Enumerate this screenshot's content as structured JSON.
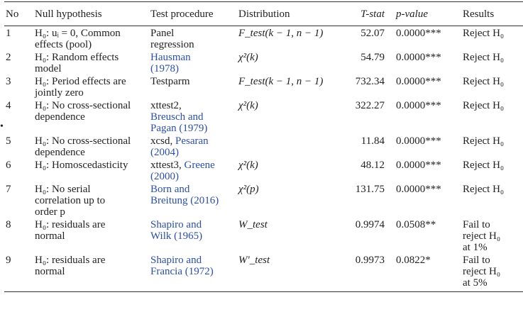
{
  "side_marker": "•",
  "headers": {
    "no": "No",
    "null_hypothesis": "Null hypothesis",
    "test_procedure": "Test procedure",
    "distribution": "Distribution",
    "t_stat": "T-stat",
    "p_value": "p-value",
    "results": "Results"
  },
  "rows": [
    {
      "no": "1",
      "null_lines": [
        "H₀: uᵢ = 0, Common",
        "effects (pool)"
      ],
      "test_plain": "Panel",
      "test_plain2": "regression",
      "test_link": "",
      "test_link2": "",
      "test_link3": "",
      "distribution": "F_test(k − 1, n − 1)",
      "t_stat": "52.07",
      "p_value": "0.0000***",
      "results_lines": [
        "Reject H₀"
      ]
    },
    {
      "no": "2",
      "null_lines": [
        "H₀: Random effects",
        "model"
      ],
      "test_plain": "",
      "test_plain2": "",
      "test_link": "Hausman",
      "test_link2": "(1978)",
      "test_link3": "",
      "distribution": "χ²(k)",
      "t_stat": "54.79",
      "p_value": "0.0000***",
      "results_lines": [
        "Reject H₀"
      ]
    },
    {
      "no": "3",
      "null_lines": [
        "H₀: Period effects are",
        "jointly zero"
      ],
      "test_plain": "Testparm",
      "test_plain2": "",
      "test_link": "",
      "test_link2": "",
      "test_link3": "",
      "distribution": "F_test(k − 1, n − 1)",
      "t_stat": "732.34",
      "p_value": "0.0000***",
      "results_lines": [
        "Reject H₀"
      ]
    },
    {
      "no": "4",
      "null_lines": [
        "H₀: No cross-sectional",
        "dependence"
      ],
      "test_plain": "xttest2,",
      "test_plain2": "",
      "test_link": "Breusch and",
      "test_link2": "Pagan (1979)",
      "test_link3": "",
      "distribution": "χ²(k)",
      "t_stat": "322.27",
      "p_value": "0.0000***",
      "results_lines": [
        "Reject H₀"
      ]
    },
    {
      "no": "5",
      "null_lines": [
        "H₀: No cross-sectional",
        "dependence"
      ],
      "test_plain": "xcsd, ",
      "test_plain2": "",
      "test_link": "Pesaran",
      "test_link2": "(2004)",
      "test_link3": "",
      "distribution": "",
      "t_stat": "11.84",
      "p_value": "0.0000***",
      "results_lines": [
        "Reject H₀"
      ]
    },
    {
      "no": "6",
      "null_lines": [
        "H₀: Homoscedasticity"
      ],
      "test_plain": "xttest3, ",
      "test_plain2": "",
      "test_link": "Greene",
      "test_link2": "(2000)",
      "test_link3": "",
      "distribution": "χ²(k)",
      "t_stat": "48.12",
      "p_value": "0.0000***",
      "results_lines": [
        "Reject H₀"
      ]
    },
    {
      "no": "7",
      "null_lines": [
        "H₀: No serial",
        "correlation up to",
        "order p"
      ],
      "test_plain": "",
      "test_plain2": "",
      "test_link": "Born and",
      "test_link2": "Breitung (2016)",
      "test_link3": "",
      "distribution": "χ²(p)",
      "t_stat": "131.75",
      "p_value": "0.0000***",
      "results_lines": [
        "Reject H₀"
      ]
    },
    {
      "no": "8",
      "null_lines": [
        "H₀: residuals are",
        "normal"
      ],
      "test_plain": "",
      "test_plain2": "",
      "test_link": "Shapiro and",
      "test_link2": "Wilk (1965)",
      "test_link3": "",
      "distribution": "W_test",
      "t_stat": "0.9974",
      "p_value": "0.0508**",
      "results_lines": [
        "Fail to",
        "reject H₀",
        "at 1%"
      ]
    },
    {
      "no": "9",
      "null_lines": [
        "H₀: residuals are",
        "normal"
      ],
      "test_plain": "",
      "test_plain2": "",
      "test_link": "Shapiro and",
      "test_link2": "Francia (1972)",
      "test_link3": "",
      "distribution": "W′_test",
      "t_stat": "0.9973",
      "p_value": "0.0822*",
      "results_lines": [
        "Fail to",
        "reject H₀",
        "at 5%"
      ]
    }
  ]
}
